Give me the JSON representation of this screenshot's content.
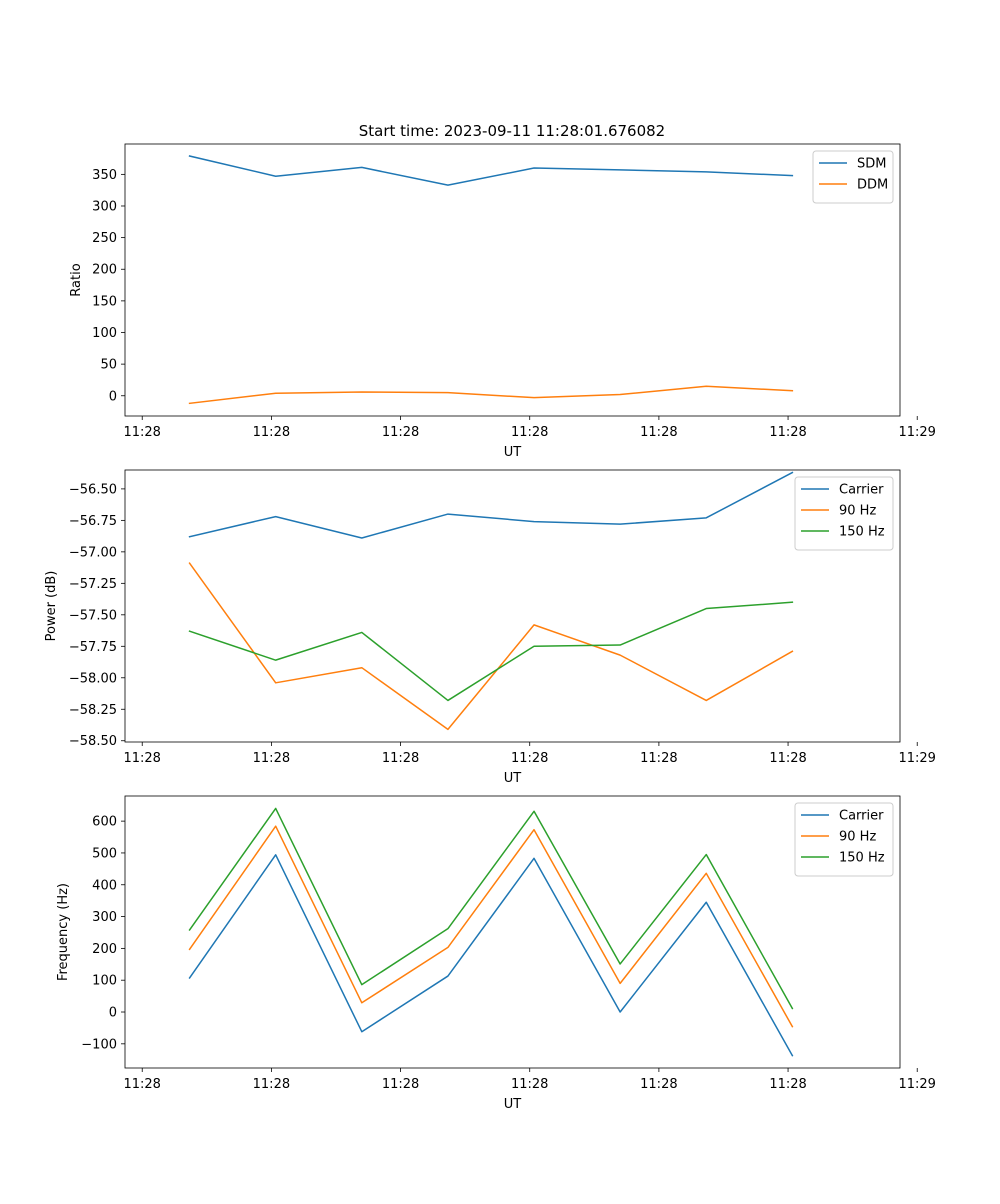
{
  "figure_title": "Start time: 2023-09-11 11:28:01.676082",
  "colors": {
    "c0": "#1f77b4",
    "c1": "#ff7f0e",
    "c2": "#2ca02c"
  },
  "chart_data": [
    {
      "type": "line",
      "title": "Start time: 2023-09-11 11:28:01.676082",
      "xlabel": "UT",
      "ylabel": "Ratio",
      "x": [
        1,
        2,
        3,
        4,
        5,
        6,
        7,
        8
      ],
      "xlim": [
        0.25,
        9.25
      ],
      "xtick_positions": [
        0.45,
        1.95,
        3.45,
        4.95,
        6.45,
        7.95,
        9.45
      ],
      "xtick_labels": [
        "11:28",
        "11:28",
        "11:28",
        "11:28",
        "11:28",
        "11:28",
        "11:29"
      ],
      "ylim": [
        -32,
        398
      ],
      "yticks": [
        0,
        50,
        100,
        150,
        200,
        250,
        300,
        350
      ],
      "ytick_labels": [
        "0",
        "50",
        "100",
        "150",
        "200",
        "250",
        "300",
        "350"
      ],
      "legend_position": "top-right",
      "series": [
        {
          "name": "SDM",
          "color": "#1f77b4",
          "values": [
            379,
            347,
            361,
            333,
            360,
            357,
            354,
            348
          ]
        },
        {
          "name": "DDM",
          "color": "#ff7f0e",
          "values": [
            -12,
            4,
            6,
            5,
            -3,
            2,
            15,
            8
          ]
        }
      ]
    },
    {
      "type": "line",
      "title": "",
      "xlabel": "UT",
      "ylabel": "Power (dB)",
      "x": [
        1,
        2,
        3,
        4,
        5,
        6,
        7,
        8
      ],
      "xlim": [
        0.25,
        9.25
      ],
      "xtick_positions": [
        0.45,
        1.95,
        3.45,
        4.95,
        6.45,
        7.95,
        9.45
      ],
      "xtick_labels": [
        "11:28",
        "11:28",
        "11:28",
        "11:28",
        "11:28",
        "11:28",
        "11:29"
      ],
      "ylim": [
        -58.51,
        -56.35
      ],
      "yticks": [
        -58.5,
        -58.25,
        -58.0,
        -57.75,
        -57.5,
        -57.25,
        -57.0,
        -56.75,
        -56.5
      ],
      "ytick_labels": [
        "−58.50",
        "−58.25",
        "−58.00",
        "−57.75",
        "−57.50",
        "−57.25",
        "−57.00",
        "−56.75",
        "−56.50"
      ],
      "legend_position": "top-right",
      "series": [
        {
          "name": "Carrier",
          "color": "#1f77b4",
          "values": [
            -56.88,
            -56.72,
            -56.89,
            -56.7,
            -56.76,
            -56.78,
            -56.73,
            -56.37
          ]
        },
        {
          "name": "90 Hz",
          "color": "#ff7f0e",
          "values": [
            -57.09,
            -58.04,
            -57.92,
            -58.41,
            -57.58,
            -57.82,
            -58.18,
            -57.79
          ]
        },
        {
          "name": "150 Hz",
          "color": "#2ca02c",
          "values": [
            -57.63,
            -57.86,
            -57.64,
            -58.18,
            -57.75,
            -57.74,
            -57.45,
            -57.4
          ]
        }
      ]
    },
    {
      "type": "line",
      "title": "",
      "xlabel": "UT",
      "ylabel": "Frequency (Hz)",
      "x": [
        1,
        2,
        3,
        4,
        5,
        6,
        7,
        8
      ],
      "xlim": [
        0.25,
        9.25
      ],
      "xtick_positions": [
        0.45,
        1.95,
        3.45,
        4.95,
        6.45,
        7.95,
        9.45
      ],
      "xtick_labels": [
        "11:28",
        "11:28",
        "11:28",
        "11:28",
        "11:28",
        "11:28",
        "11:29"
      ],
      "ylim": [
        -176,
        679
      ],
      "yticks": [
        -100,
        0,
        100,
        200,
        300,
        400,
        500,
        600
      ],
      "ytick_labels": [
        "−100",
        "0",
        "100",
        "200",
        "300",
        "400",
        "500",
        "600"
      ],
      "legend_position": "top-right",
      "series": [
        {
          "name": "Carrier",
          "color": "#1f77b4",
          "values": [
            107,
            494,
            -62,
            113,
            483,
            0,
            345,
            -137
          ]
        },
        {
          "name": "90 Hz",
          "color": "#ff7f0e",
          "values": [
            197,
            584,
            29,
            203,
            573,
            90,
            436,
            -46
          ]
        },
        {
          "name": "150 Hz",
          "color": "#2ca02c",
          "values": [
            258,
            640,
            86,
            262,
            631,
            151,
            495,
            11
          ]
        }
      ]
    }
  ]
}
